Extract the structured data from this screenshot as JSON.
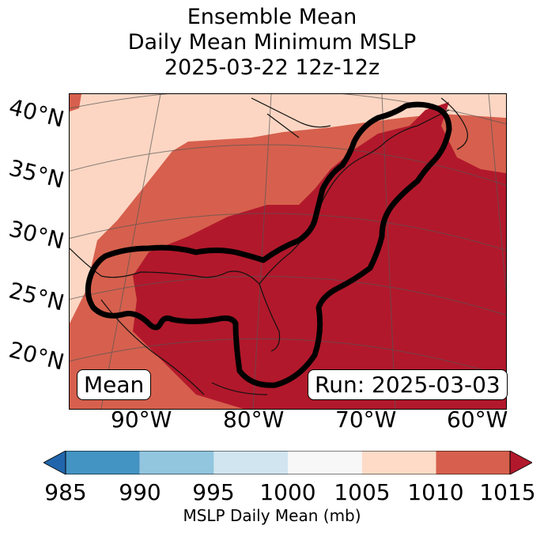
{
  "title": {
    "line1": "Ensemble Mean",
    "line2": "Daily Mean Minimum MSLP",
    "line3": "2025-03-22 12z-12z"
  },
  "map": {
    "lat_labels": [
      "40°N",
      "35°N",
      "30°N",
      "25°N",
      "20°N"
    ],
    "lon_labels": [
      "90°W",
      "80°W",
      "70°W",
      "60°W"
    ],
    "badge_left": "Mean",
    "badge_right": "Run: 2025-03-03"
  },
  "colorbar": {
    "ticks": [
      "985",
      "990",
      "995",
      "1000",
      "1005",
      "1010",
      "1015"
    ],
    "label": "MSLP Daily Mean (mb)",
    "colors": {
      "below": "#2166ac",
      "c985_990": "#4393c3",
      "c990_995": "#92c5de",
      "c995_1000": "#d1e5f0",
      "c1000_1005": "#f7f7f7",
      "c1005_1010": "#fddbc7",
      "c1010_1015": "#d6604d",
      "above": "#b2182b"
    }
  }
}
